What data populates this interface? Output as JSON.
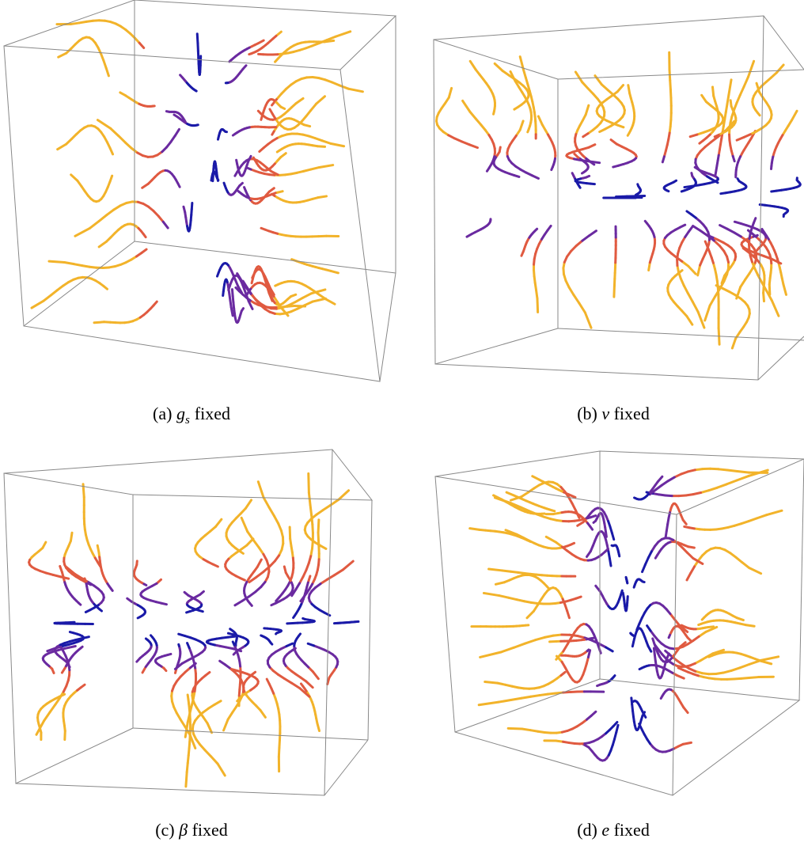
{
  "figure": {
    "panels": [
      {
        "tag": "(a)",
        "symbol": "g",
        "sub": "s",
        "text": "fixed"
      },
      {
        "tag": "(b)",
        "symbol": "v",
        "text": "fixed"
      },
      {
        "tag": "(c)",
        "symbol": "β",
        "text": "fixed"
      },
      {
        "tag": "(d)",
        "symbol": "e",
        "text": "fixed"
      }
    ]
  }
}
